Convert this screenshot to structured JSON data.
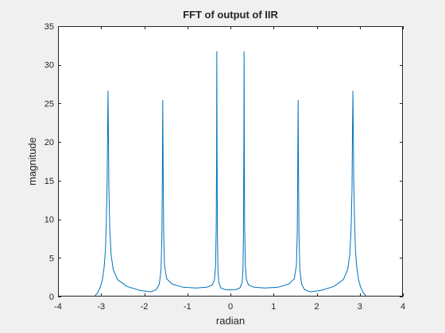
{
  "chart_data": {
    "type": "line",
    "title": "FFT of output of IIR",
    "xlabel": "radian",
    "ylabel": "magnitude",
    "xlim": [
      -4,
      4
    ],
    "ylim": [
      0,
      35
    ],
    "xticks": [
      "-4",
      "-3",
      "-2",
      "-1",
      "0",
      "1",
      "2",
      "3",
      "4"
    ],
    "yticks": [
      "0",
      "5",
      "10",
      "15",
      "20",
      "25",
      "30",
      "35"
    ],
    "grid": false,
    "line_color": "#0072bd",
    "series": [
      {
        "name": "magnitude",
        "points": [
          [
            -3.14,
            0.1
          ],
          [
            -3.08,
            0.5
          ],
          [
            -3.02,
            1.2
          ],
          [
            -2.97,
            2.2
          ],
          [
            -2.93,
            3.8
          ],
          [
            -2.9,
            6.0
          ],
          [
            -2.88,
            9.5
          ],
          [
            -2.86,
            15.0
          ],
          [
            -2.85,
            21.0
          ],
          [
            -2.84,
            26.6
          ],
          [
            -2.83,
            21.0
          ],
          [
            -2.82,
            14.0
          ],
          [
            -2.8,
            9.0
          ],
          [
            -2.77,
            5.5
          ],
          [
            -2.72,
            3.5
          ],
          [
            -2.62,
            2.2
          ],
          [
            -2.4,
            1.3
          ],
          [
            -2.1,
            0.8
          ],
          [
            -1.85,
            0.6
          ],
          [
            -1.72,
            0.9
          ],
          [
            -1.65,
            1.6
          ],
          [
            -1.61,
            3.5
          ],
          [
            -1.59,
            8.0
          ],
          [
            -1.58,
            15.0
          ],
          [
            -1.57,
            25.4
          ],
          [
            -1.56,
            16.0
          ],
          [
            -1.55,
            8.5
          ],
          [
            -1.53,
            4.0
          ],
          [
            -1.48,
            2.3
          ],
          [
            -1.35,
            1.6
          ],
          [
            -1.1,
            1.2
          ],
          [
            -0.8,
            1.1
          ],
          [
            -0.55,
            1.2
          ],
          [
            -0.42,
            1.5
          ],
          [
            -0.37,
            2.2
          ],
          [
            -0.345,
            4.0
          ],
          [
            -0.33,
            9.0
          ],
          [
            -0.322,
            18.0
          ],
          [
            -0.316,
            31.7
          ],
          [
            -0.31,
            18.0
          ],
          [
            -0.302,
            8.0
          ],
          [
            -0.29,
            3.5
          ],
          [
            -0.27,
            1.8
          ],
          [
            -0.22,
            1.1
          ],
          [
            -0.12,
            0.9
          ],
          [
            0.0,
            0.85
          ],
          [
            0.12,
            0.9
          ],
          [
            0.22,
            1.1
          ],
          [
            0.27,
            1.8
          ],
          [
            0.29,
            3.5
          ],
          [
            0.302,
            8.0
          ],
          [
            0.31,
            18.0
          ],
          [
            0.316,
            31.7
          ],
          [
            0.322,
            18.0
          ],
          [
            0.33,
            9.0
          ],
          [
            0.345,
            4.0
          ],
          [
            0.37,
            2.2
          ],
          [
            0.42,
            1.5
          ],
          [
            0.55,
            1.2
          ],
          [
            0.8,
            1.1
          ],
          [
            1.1,
            1.2
          ],
          [
            1.35,
            1.6
          ],
          [
            1.48,
            2.3
          ],
          [
            1.53,
            4.0
          ],
          [
            1.55,
            8.5
          ],
          [
            1.56,
            16.0
          ],
          [
            1.57,
            25.4
          ],
          [
            1.58,
            15.0
          ],
          [
            1.59,
            8.0
          ],
          [
            1.61,
            3.5
          ],
          [
            1.65,
            1.6
          ],
          [
            1.72,
            0.9
          ],
          [
            1.85,
            0.6
          ],
          [
            2.1,
            0.8
          ],
          [
            2.4,
            1.3
          ],
          [
            2.62,
            2.2
          ],
          [
            2.72,
            3.5
          ],
          [
            2.77,
            5.5
          ],
          [
            2.8,
            9.0
          ],
          [
            2.82,
            14.0
          ],
          [
            2.83,
            21.0
          ],
          [
            2.84,
            26.6
          ],
          [
            2.85,
            21.0
          ],
          [
            2.86,
            15.0
          ],
          [
            2.88,
            9.5
          ],
          [
            2.9,
            6.0
          ],
          [
            2.93,
            3.8
          ],
          [
            2.97,
            2.2
          ],
          [
            3.02,
            1.2
          ],
          [
            3.08,
            0.5
          ],
          [
            3.14,
            0.1
          ]
        ]
      }
    ]
  }
}
